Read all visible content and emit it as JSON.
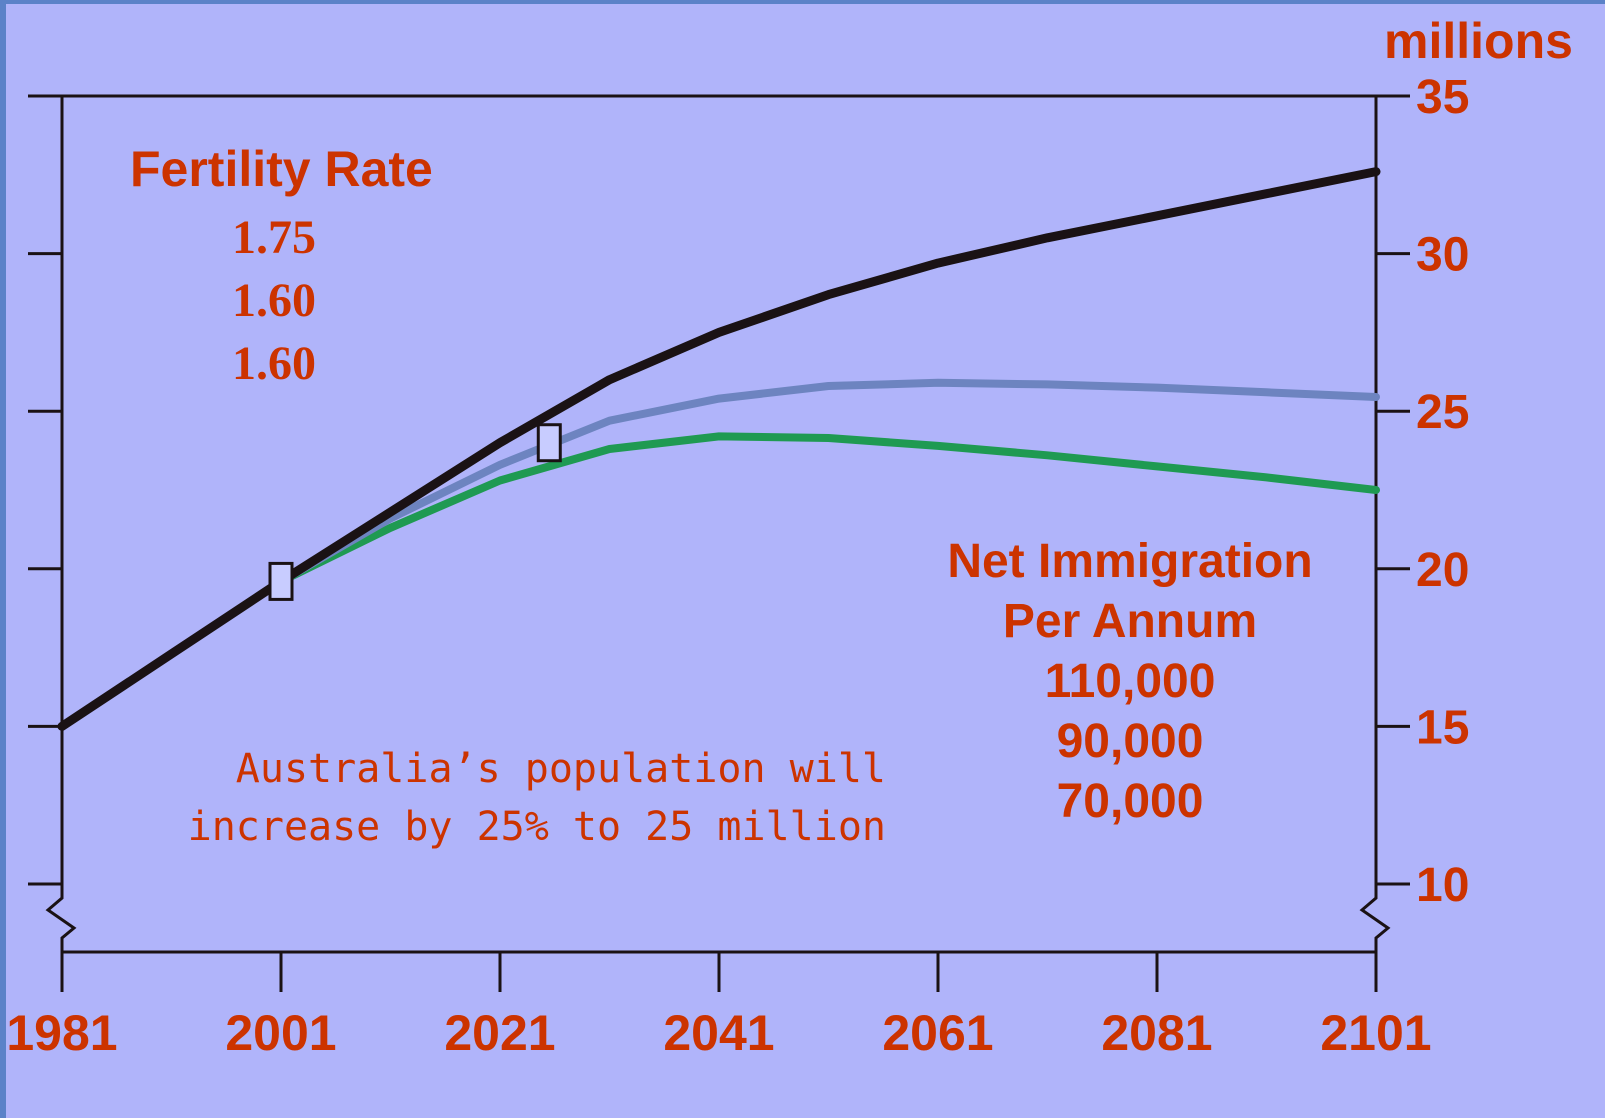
{
  "chart_data": {
    "type": "line",
    "y_unit": "millions",
    "ylim": [
      10,
      35
    ],
    "xlim": [
      1981,
      2101
    ],
    "x_ticks": [
      1981,
      2001,
      2021,
      2041,
      2061,
      2081,
      2101
    ],
    "y_ticks": [
      10,
      15,
      20,
      25,
      30,
      35
    ],
    "y_axis_side": "right",
    "grid": false,
    "series": [
      {
        "color": "#1a1214",
        "x": [
          1981,
          1991,
          2001,
          2011,
          2021,
          2031,
          2041,
          2051,
          2061,
          2071,
          2081,
          2091,
          2101
        ],
        "values": [
          15.0,
          17.3,
          19.6,
          21.8,
          24.0,
          26.0,
          27.5,
          28.7,
          29.7,
          30.5,
          31.2,
          31.9,
          32.6
        ]
      },
      {
        "color": "#6d84c0",
        "x": [
          2001,
          2011,
          2021,
          2031,
          2041,
          2051,
          2061,
          2071,
          2081,
          2091,
          2101
        ],
        "values": [
          19.6,
          21.6,
          23.3,
          24.7,
          25.4,
          25.8,
          25.9,
          25.85,
          25.75,
          25.6,
          25.45
        ]
      },
      {
        "color": "#1f9a52",
        "x": [
          2001,
          2011,
          2021,
          2031,
          2041,
          2051,
          2061,
          2071,
          2081,
          2091,
          2101
        ],
        "values": [
          19.6,
          21.3,
          22.8,
          23.8,
          24.2,
          24.15,
          23.9,
          23.6,
          23.25,
          22.9,
          22.5
        ]
      }
    ],
    "markers": [
      {
        "x": 2001,
        "y": 19.6
      },
      {
        "x": 2025.5,
        "y": 24.0
      }
    ],
    "annotations": {
      "fertility_title": "Fertility Rate",
      "fertility_values": [
        "1.75",
        "1.60",
        "1.60"
      ],
      "immigration_title_1": "Net Immigration",
      "immigration_title_2": "Per Annum",
      "immigration_values": [
        "110,000",
        "90,000",
        "70,000"
      ],
      "note_line1": "Australia’s population will",
      "note_line2": "increase by 25% to 25 million"
    }
  },
  "colors": {
    "background": "#b0b4fa",
    "frame": "#5b82c8",
    "text": "#cc3300",
    "axis": "#1a1214",
    "marker_fill": "#c8ccff"
  }
}
